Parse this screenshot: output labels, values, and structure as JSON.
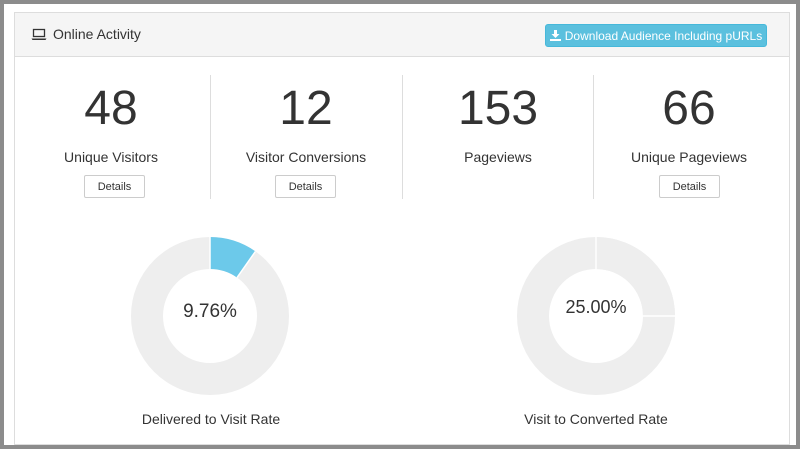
{
  "panel": {
    "title": "Online Activity",
    "icon": "laptop-icon",
    "download_button": {
      "label": "Download Audience Including pURLs",
      "icon": "download-icon",
      "color": "#5bc0de"
    }
  },
  "stats": [
    {
      "value": "48",
      "label": "Unique Visitors",
      "button": "Details"
    },
    {
      "value": "12",
      "label": "Visitor Conversions",
      "button": "Details"
    },
    {
      "value": "153",
      "label": "Pageviews"
    },
    {
      "value": "66",
      "label": "Unique Pageviews",
      "button": "Details"
    }
  ],
  "rates": [
    {
      "percent_label": "9.76%",
      "fraction": 0.0976,
      "label": "Delivered to Visit Rate",
      "fill_color": "#6cc9ea",
      "track_color": "#eeeeee"
    },
    {
      "percent_label": "25.00%",
      "fraction": 0.25,
      "label": "Visit to Converted Rate",
      "fill_color": "#eeeeee",
      "track_color": "#eeeeee"
    }
  ]
}
